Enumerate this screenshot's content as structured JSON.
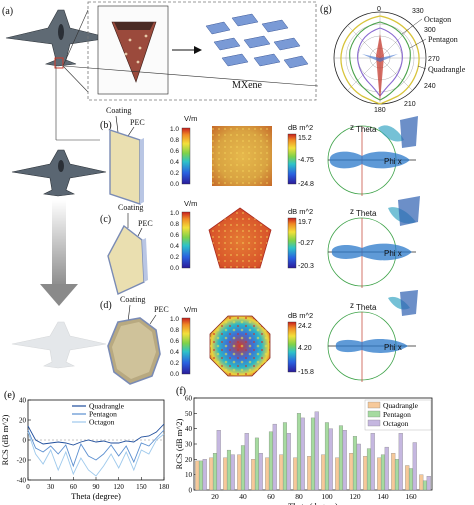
{
  "panels": {
    "a": "(a)",
    "b": "(b)",
    "c": "(c)",
    "d": "(d)",
    "e": "(e)",
    "f": "(f)",
    "g": "(g)"
  },
  "mxene_label": "MXene",
  "coating_label": "Coating",
  "pec_label": "PEC",
  "field_unit": "V/m",
  "rcs_unit": "dB m^2",
  "axis_labels": {
    "z": "z",
    "theta": "Theta",
    "phi": "Phi x"
  },
  "colorbars": {
    "b": {
      "field": [
        "1.0",
        "0.8",
        "0.6",
        "0.4",
        "0.2",
        "0.0"
      ],
      "rcs": [
        "15.2",
        "-4.75",
        "-24.8"
      ]
    },
    "c": {
      "field": [
        "1.0",
        "0.8",
        "0.6",
        "0.4",
        "0.2",
        "0.0"
      ],
      "rcs": [
        "19.7",
        "-0.27",
        "-20.3"
      ]
    },
    "d": {
      "field": [
        "1.0",
        "0.8",
        "0.6",
        "0.4",
        "0.2",
        "0.0"
      ],
      "rcs": [
        "24.2",
        "4.20",
        "-15.8"
      ]
    }
  },
  "colors": {
    "quadrangle": "#f6c99a",
    "pentagon": "#a6dba0",
    "octagon": "#c5b7e0",
    "e_quadrangle": "#1f4e9c",
    "e_pentagon": "#5b8fd0",
    "e_octagon": "#9ec9ec"
  },
  "polar": {
    "labels": [
      "0",
      "330",
      "300",
      "270",
      "240",
      "210",
      "180"
    ],
    "legend": [
      "Octagon",
      "Pentagon",
      "Quadrangle"
    ]
  },
  "chart_data": [
    {
      "type": "line",
      "panel": "(e)",
      "xlabel": "Theta (degree)",
      "ylabel": "RCS (dB m^2)",
      "xlim": [
        0,
        180
      ],
      "ylim": [
        -40,
        40
      ],
      "xticks": [
        "0",
        "30",
        "60",
        "90",
        "120",
        "150",
        "180"
      ],
      "yticks": [
        "-40",
        "-20",
        "0",
        "20",
        "40"
      ],
      "x": [
        0,
        10,
        20,
        30,
        40,
        50,
        60,
        70,
        80,
        90,
        100,
        110,
        120,
        130,
        140,
        150,
        160,
        170,
        180
      ],
      "series": [
        {
          "name": "Quadrangle",
          "values": [
            14,
            0,
            -4,
            -3,
            -2,
            -3,
            -5,
            -2,
            0,
            -2,
            -1,
            -3,
            -3,
            -1,
            -2,
            3,
            4,
            8,
            16
          ]
        },
        {
          "name": "Pentagon",
          "values": [
            10,
            -8,
            -12,
            -6,
            -14,
            -5,
            -26,
            -4,
            -16,
            -20,
            -14,
            -5,
            -16,
            -6,
            -22,
            -3,
            -6,
            2,
            10
          ]
        },
        {
          "name": "Octagon",
          "values": [
            8,
            -14,
            -24,
            -10,
            -30,
            -12,
            -34,
            -18,
            -30,
            -36,
            -26,
            -14,
            -28,
            -12,
            -30,
            -10,
            -14,
            0,
            6
          ]
        }
      ]
    },
    {
      "type": "bar",
      "panel": "(f)",
      "xlabel": "Theta (degree)",
      "ylabel": "RCS (dB m^2)",
      "ylim": [
        0,
        60
      ],
      "xticks": [
        "20",
        "40",
        "60",
        "80",
        "100",
        "120",
        "140",
        "160"
      ],
      "yticks": [
        "0",
        "10",
        "20",
        "30",
        "40",
        "50",
        "60"
      ],
      "categories": [
        10,
        20,
        30,
        40,
        50,
        60,
        70,
        80,
        90,
        100,
        110,
        120,
        130,
        140,
        150,
        160,
        170
      ],
      "series": [
        {
          "name": "Quadrangle",
          "values": [
            19,
            21,
            21,
            23,
            20,
            21,
            23,
            21,
            22,
            23,
            21,
            24,
            22,
            21,
            24,
            16,
            10
          ]
        },
        {
          "name": "Pentagon",
          "values": [
            19,
            24,
            26,
            29,
            34,
            38,
            44,
            50,
            47,
            44,
            42,
            35,
            27,
            23,
            20,
            14,
            6
          ]
        },
        {
          "name": "Octagon",
          "values": [
            20,
            39,
            23,
            37,
            24,
            43,
            37,
            47,
            51,
            40,
            39,
            30,
            37,
            28,
            37,
            31,
            9
          ]
        }
      ]
    }
  ]
}
